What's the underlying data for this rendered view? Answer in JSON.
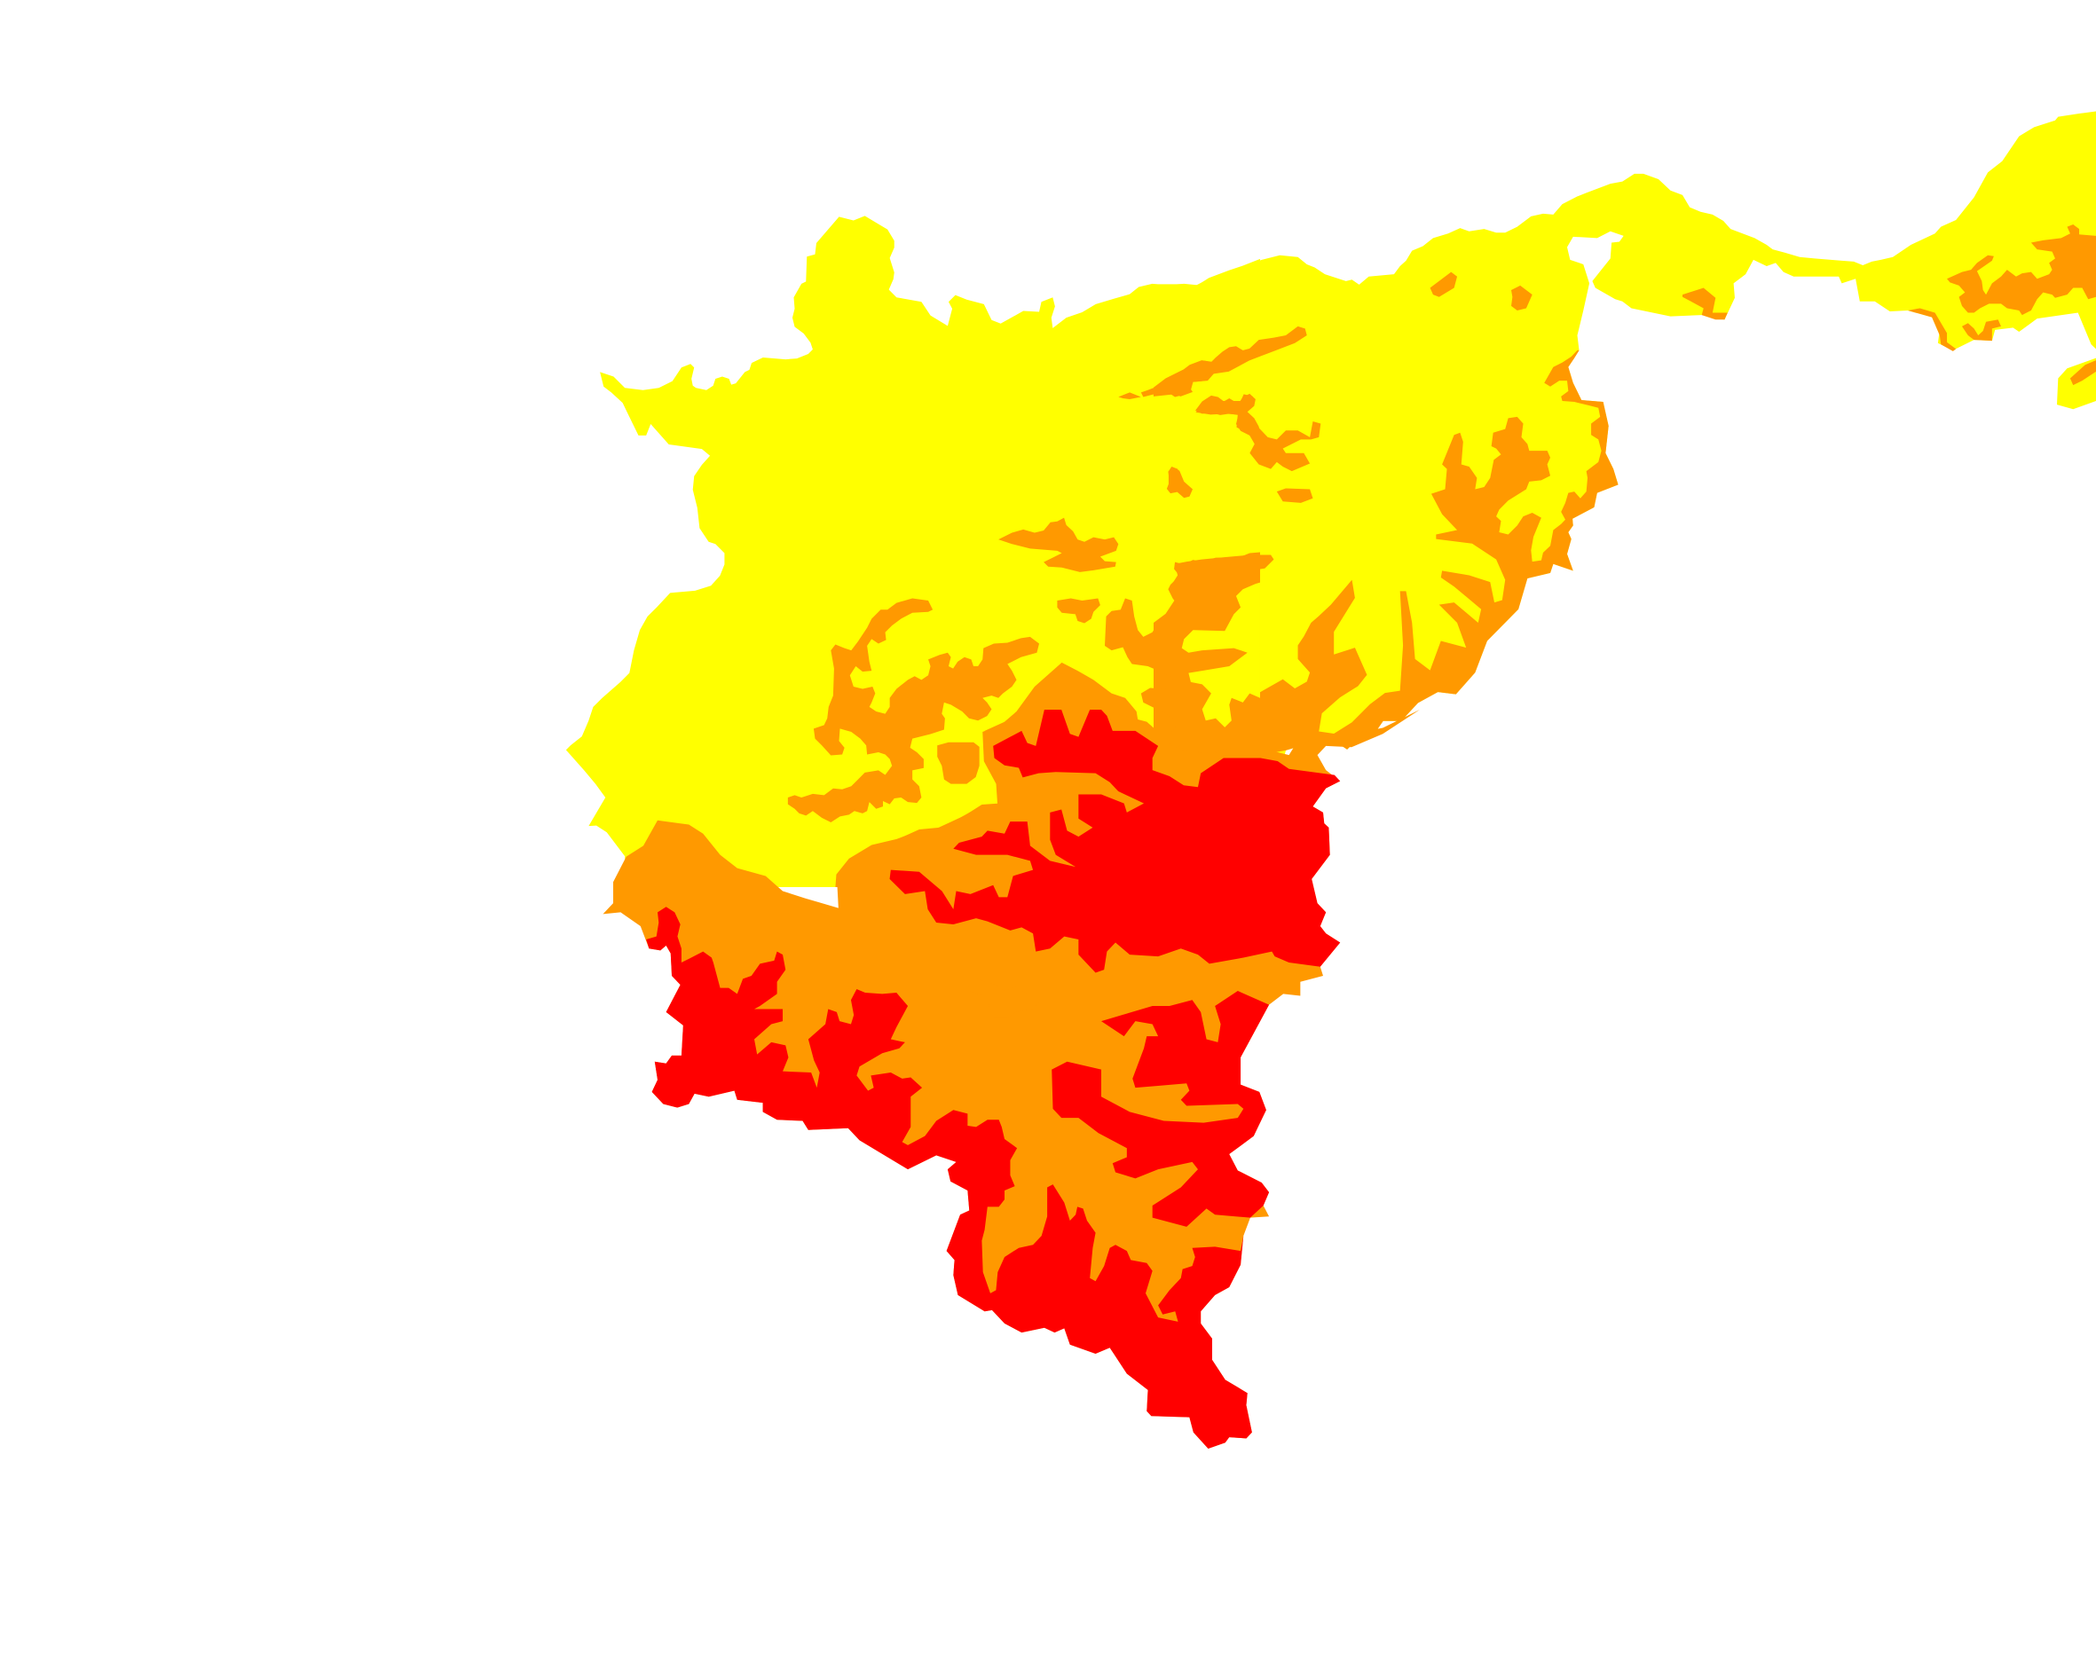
{
  "map": {
    "background": "#FFFFFF",
    "zone_colors": {
      "low": "#FFFF00",
      "medium": "#FF9900",
      "high": "#FF0000"
    }
  }
}
